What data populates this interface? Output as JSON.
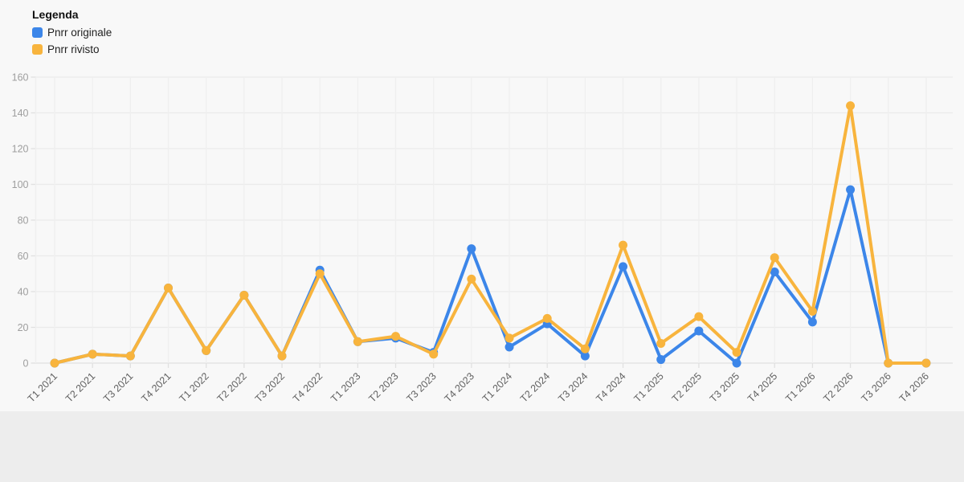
{
  "legend": {
    "title": "Legenda"
  },
  "chart_data": {
    "type": "line",
    "title": "",
    "xlabel": "",
    "ylabel": "",
    "categories": [
      "T1 2021",
      "T2 2021",
      "T3 2021",
      "T4 2021",
      "T1 2022",
      "T2 2022",
      "T3 2022",
      "T4 2022",
      "T1 2023",
      "T2 2023",
      "T3 2023",
      "T4 2023",
      "T1 2024",
      "T2 2024",
      "T3 2024",
      "T4 2024",
      "T1 2025",
      "T2 2025",
      "T3 2025",
      "T4 2025",
      "T1 2026",
      "T2 2026",
      "T3 2026",
      "T4 2026"
    ],
    "series": [
      {
        "name": "Pnrr originale",
        "color": "#3c86e9",
        "values": [
          0,
          5,
          4,
          42,
          7,
          38,
          4,
          52,
          12,
          14,
          6,
          64,
          9,
          22,
          4,
          54,
          2,
          18,
          0,
          51,
          23,
          97,
          0,
          0
        ]
      },
      {
        "name": "Pnrr rivisto",
        "color": "#f8b43d",
        "values": [
          0,
          5,
          4,
          42,
          7,
          38,
          4,
          50,
          12,
          15,
          5,
          47,
          14,
          25,
          8,
          66,
          11,
          26,
          6,
          59,
          29,
          144,
          0,
          0
        ]
      }
    ],
    "ylim": [
      0,
      160
    ],
    "yticks": [
      0,
      20,
      40,
      60,
      80,
      100,
      120,
      140,
      160
    ],
    "grid": true,
    "legend_position": "top-left",
    "background": "#f8f8f8",
    "colors": {
      "h_grid": "#ebebeb",
      "v_grid": "#efefef",
      "axis": "#e0e0e0",
      "y_tick_label": "#9e9e9e",
      "x_tick_label": "#616161"
    }
  }
}
